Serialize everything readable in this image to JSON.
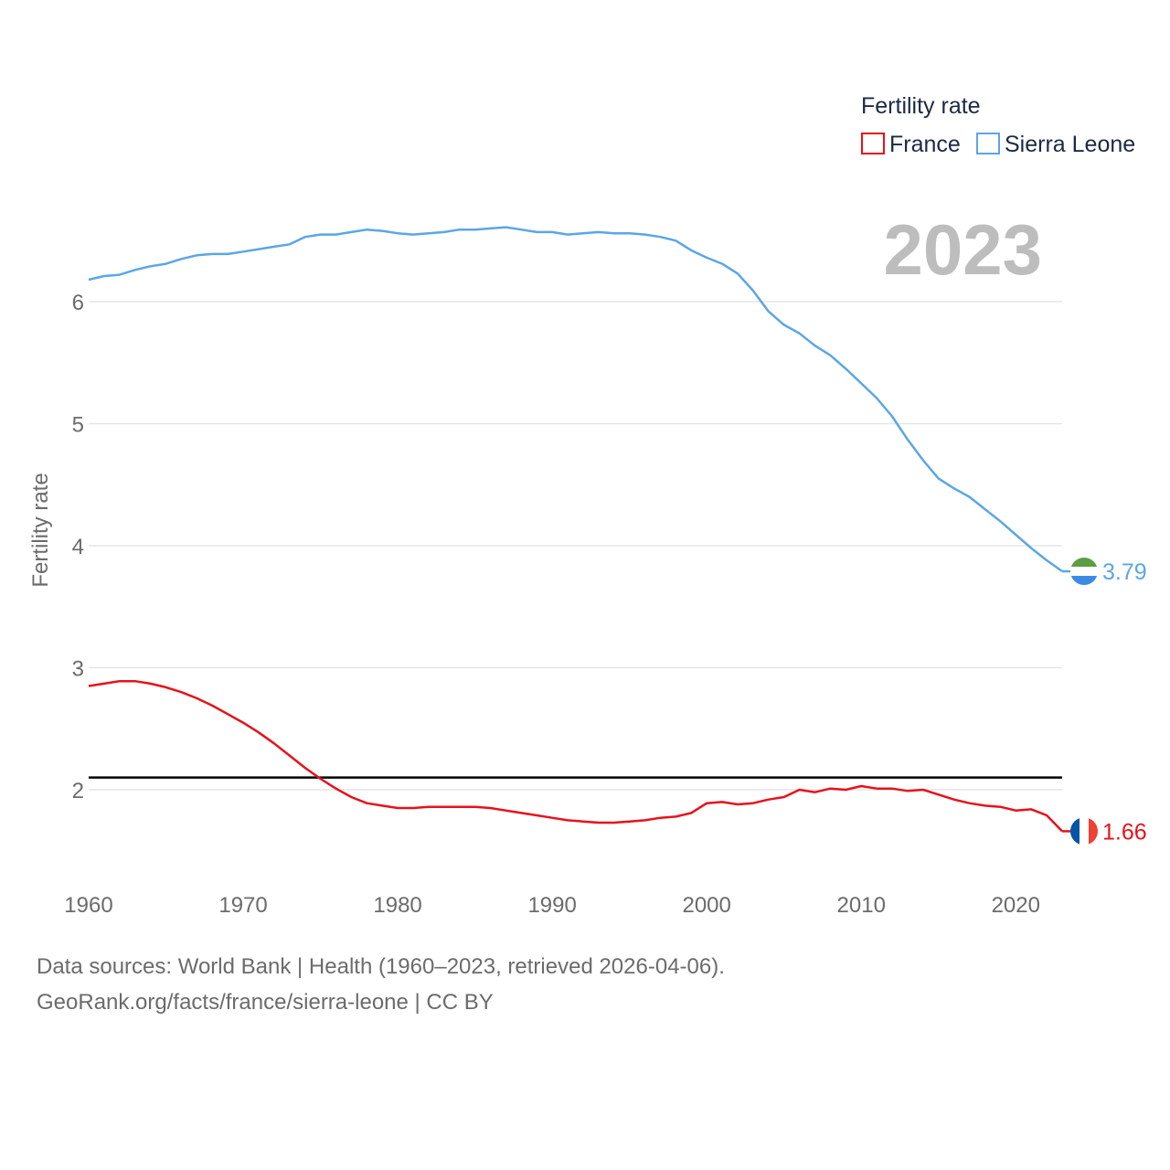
{
  "chart_data": {
    "type": "line",
    "legend_title": "Fertility rate",
    "ylabel": "Fertility rate",
    "xlabel": "",
    "year_label": "2023",
    "xlim": [
      1960,
      2023
    ],
    "ylim": [
      1.4,
      7.0
    ],
    "x_ticks": [
      1960,
      1970,
      1980,
      1990,
      2000,
      2010,
      2020
    ],
    "y_ticks": [
      2,
      3,
      4,
      5,
      6
    ],
    "reference_line": 2.1,
    "legend_position": "top-right",
    "x": [
      1960,
      1961,
      1962,
      1963,
      1964,
      1965,
      1966,
      1967,
      1968,
      1969,
      1970,
      1971,
      1972,
      1973,
      1974,
      1975,
      1976,
      1977,
      1978,
      1979,
      1980,
      1981,
      1982,
      1983,
      1984,
      1985,
      1986,
      1987,
      1988,
      1989,
      1990,
      1991,
      1992,
      1993,
      1994,
      1995,
      1996,
      1997,
      1998,
      1999,
      2000,
      2001,
      2002,
      2003,
      2004,
      2005,
      2006,
      2007,
      2008,
      2009,
      2010,
      2011,
      2012,
      2013,
      2014,
      2015,
      2016,
      2017,
      2018,
      2019,
      2020,
      2021,
      2022,
      2023
    ],
    "series": [
      {
        "name": "France",
        "color": "#e8111b",
        "flag": "france-flag",
        "end_label": "1.66",
        "values": [
          2.85,
          2.87,
          2.89,
          2.89,
          2.87,
          2.84,
          2.8,
          2.75,
          2.69,
          2.62,
          2.55,
          2.47,
          2.38,
          2.28,
          2.18,
          2.09,
          2.01,
          1.94,
          1.89,
          1.87,
          1.85,
          1.85,
          1.86,
          1.86,
          1.86,
          1.86,
          1.85,
          1.83,
          1.81,
          1.79,
          1.77,
          1.75,
          1.74,
          1.73,
          1.73,
          1.74,
          1.75,
          1.77,
          1.78,
          1.81,
          1.89,
          1.9,
          1.88,
          1.89,
          1.92,
          1.94,
          2.0,
          1.98,
          2.01,
          2.0,
          2.03,
          2.01,
          2.01,
          1.99,
          2.0,
          1.96,
          1.92,
          1.89,
          1.87,
          1.86,
          1.83,
          1.84,
          1.79,
          1.66
        ]
      },
      {
        "name": "Sierra Leone",
        "color": "#5ba6e5",
        "flag": "sierra-leone-flag",
        "end_label": "3.79",
        "values": [
          6.18,
          6.21,
          6.22,
          6.26,
          6.29,
          6.31,
          6.35,
          6.38,
          6.39,
          6.39,
          6.41,
          6.43,
          6.45,
          6.47,
          6.53,
          6.55,
          6.55,
          6.57,
          6.59,
          6.58,
          6.56,
          6.55,
          6.56,
          6.57,
          6.59,
          6.59,
          6.6,
          6.61,
          6.59,
          6.57,
          6.57,
          6.55,
          6.56,
          6.57,
          6.56,
          6.56,
          6.55,
          6.53,
          6.5,
          6.42,
          6.36,
          6.31,
          6.23,
          6.09,
          5.92,
          5.81,
          5.74,
          5.64,
          5.56,
          5.45,
          5.33,
          5.21,
          5.06,
          4.87,
          4.7,
          4.55,
          4.47,
          4.4,
          4.3,
          4.2,
          4.09,
          3.98,
          3.88,
          3.79
        ]
      }
    ]
  },
  "footer": {
    "source_line": "Data sources: World Bank | Health (1960–2023, retrieved 2026-04-06).",
    "url_line": "GeoRank.org/facts/france/sierra-leone | CC BY"
  }
}
